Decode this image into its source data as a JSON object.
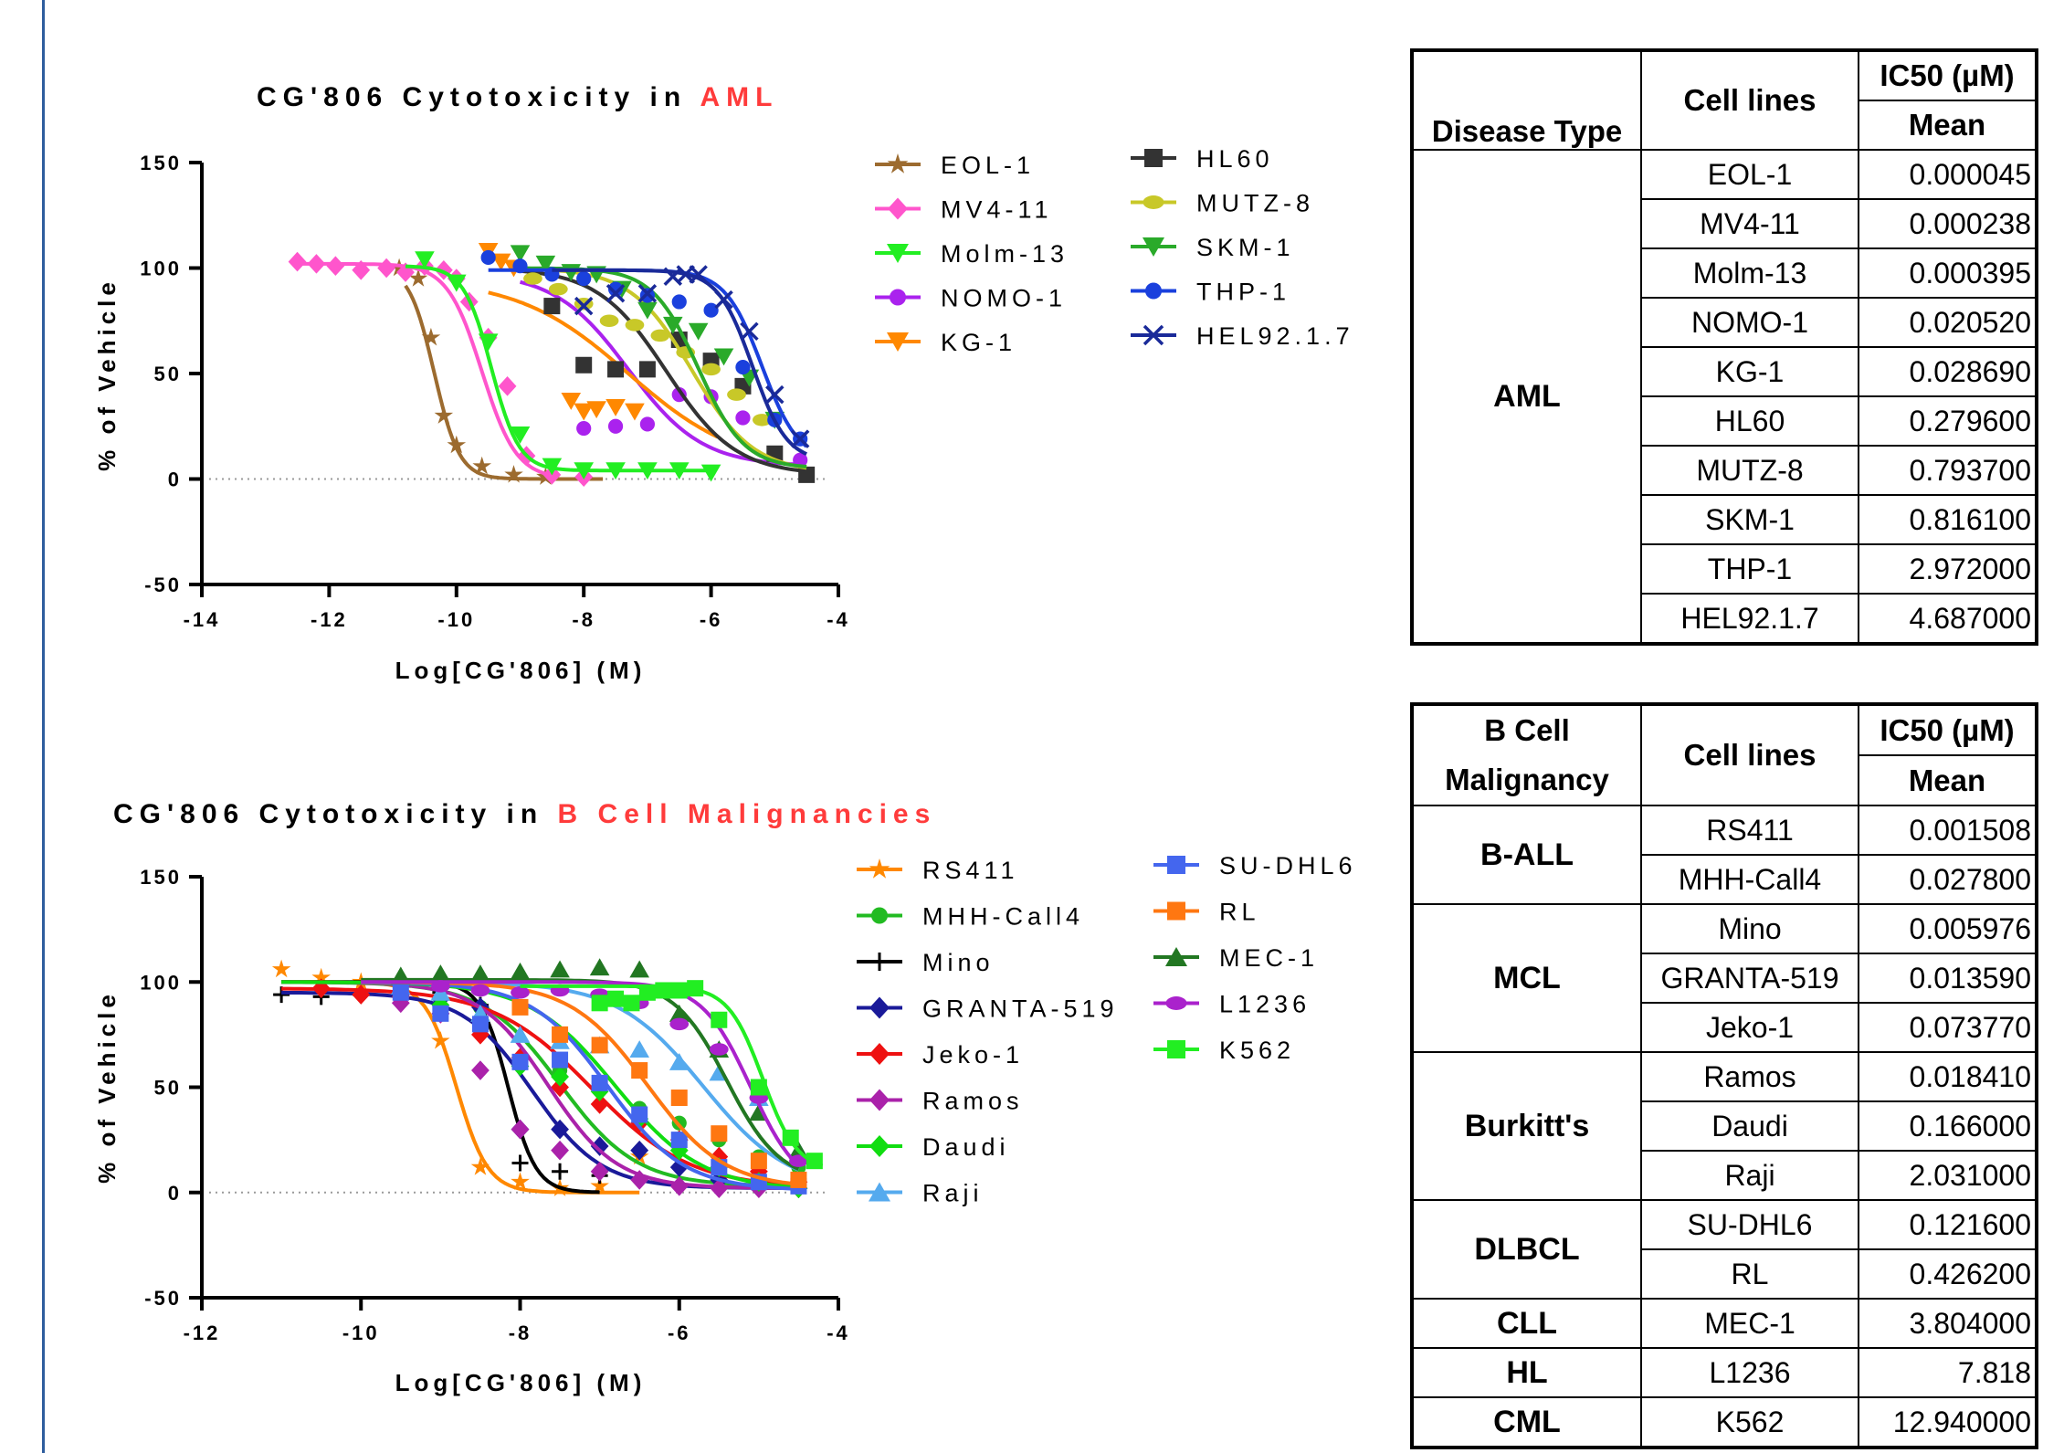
{
  "charts": {
    "aml": {
      "title_prefix": "CG'806 Cytotoxicity in ",
      "title_suffix": "AML",
      "xlabel": "Log[CG'806] (M)",
      "ylabel": "% of Vehicle",
      "xticks": [
        "-14",
        "-12",
        "-10",
        "-8",
        "-6",
        "-4"
      ],
      "yticks": [
        "150",
        "100",
        "50",
        "0",
        "-50"
      ]
    },
    "bcell": {
      "title_prefix": "CG'806 Cytotoxicity in ",
      "title_suffix": "B Cell Malignancies",
      "xlabel": "Log[CG'806] (M)",
      "ylabel": "% of Vehicle",
      "xticks": [
        "-12",
        "-10",
        "-8",
        "-6",
        "-4"
      ],
      "yticks": [
        "150",
        "100",
        "50",
        "0",
        "-50"
      ]
    }
  },
  "colors": {
    "title_accent": "#ff3b3b",
    "frame_rule": "#2e5d9e"
  },
  "chart_data": [
    {
      "type": "scatter",
      "title": "CG'806 Cytotoxicity in AML",
      "xlabel": "Log[CG'806] (M)",
      "ylabel": "% of Vehicle",
      "xlim": [
        -14,
        -4
      ],
      "ylim": [
        -50,
        150
      ],
      "legend_position": "top-right",
      "series": [
        {
          "name": "EOL-1",
          "color": "#9c6b2f",
          "marker": "star",
          "logIC50": -10.35,
          "hill": 2.2,
          "top": 101,
          "bottom": 0,
          "xmin": -10.8,
          "xmax": -7.7,
          "x": [
            -10.9,
            -10.6,
            -10.4,
            -10.2,
            -10,
            -9.6,
            -9.1,
            -8.6
          ],
          "y": [
            100,
            95,
            67,
            30,
            16,
            6,
            2,
            1
          ]
        },
        {
          "name": "MV4-11",
          "color": "#ff55cc",
          "marker": "diamond",
          "logIC50": -9.6,
          "hill": 1.6,
          "top": 102,
          "bottom": 0,
          "xmin": -12.5,
          "xmax": -8.5,
          "x": [
            -12.5,
            -12.2,
            -11.9,
            -11.5,
            -11.1,
            -10.8,
            -10.5,
            -10.2,
            -10,
            -9.8,
            -9.5,
            -9.2,
            -8.9,
            -8.5,
            -8
          ],
          "y": [
            103,
            102,
            101,
            99,
            100,
            98,
            101,
            99,
            95,
            84,
            67,
            44,
            11,
            2,
            1
          ]
        },
        {
          "name": "Molm-13",
          "color": "#22ee22",
          "marker": "tri-down",
          "logIC50": -9.45,
          "hill": 2.0,
          "top": 101,
          "bottom": 4,
          "xmin": -10.8,
          "xmax": -6,
          "x": [
            -10.5,
            -10,
            -9.5,
            -9,
            -8.5,
            -8,
            -7.5,
            -7,
            -6.5,
            -6
          ],
          "y": [
            104,
            93,
            65,
            21,
            6,
            4,
            4,
            4,
            4,
            3
          ]
        },
        {
          "name": "NOMO-1",
          "color": "#aa22ee",
          "marker": "circle",
          "logIC50": -7.3,
          "hill": 0.75,
          "top": 98,
          "bottom": 6,
          "xmin": -9,
          "xmax": -4.6,
          "x": [
            -8,
            -7.5,
            -7,
            -6.5,
            -6,
            -5.5,
            -5,
            -4.6
          ],
          "y": [
            24,
            25,
            26,
            40,
            39,
            29,
            10,
            9
          ]
        },
        {
          "name": "KG-1",
          "color": "#ff8800",
          "marker": "tri-down",
          "logIC50": -7.3,
          "hill": 0.5,
          "top": 95,
          "bottom": 5,
          "xmin": -9.5,
          "xmax": -5.9,
          "x": [
            -9.5,
            -9.3,
            -9.1,
            -8.2,
            -8,
            -7.8,
            -7.5,
            -7.2
          ],
          "y": [
            108,
            103,
            100,
            37,
            32,
            33,
            34,
            32
          ]
        },
        {
          "name": "HL60",
          "color": "#333333",
          "marker": "square",
          "logIC50": -6.7,
          "hill": 0.8,
          "top": 100,
          "bottom": 2,
          "xmin": -9,
          "xmax": -4.5,
          "x": [
            -8.5,
            -8,
            -7.5,
            -7,
            -6.5,
            -6,
            -5.5,
            -5,
            -4.5
          ],
          "y": [
            82,
            54,
            52,
            52,
            66,
            56,
            44,
            12,
            2
          ]
        },
        {
          "name": "MUTZ-8",
          "color": "#c8c828",
          "marker": "hexagon",
          "logIC50": -6.3,
          "hill": 0.9,
          "top": 100,
          "bottom": 3,
          "xmin": -9,
          "xmax": -4.5,
          "x": [
            -8.8,
            -8.4,
            -8,
            -7.6,
            -7.2,
            -6.8,
            -6.4,
            -6,
            -5.6,
            -5.2
          ],
          "y": [
            95,
            90,
            83,
            75,
            73,
            68,
            60,
            52,
            40,
            28
          ]
        },
        {
          "name": "SKM-1",
          "color": "#2aaa2a",
          "marker": "tri-down",
          "logIC50": -6.2,
          "hill": 1.2,
          "top": 100,
          "bottom": 5,
          "xmin": -9,
          "xmax": -4.5,
          "x": [
            -9,
            -8.6,
            -8.2,
            -7.8,
            -7.4,
            -7,
            -6.6,
            -6.2,
            -5.8,
            -5.4,
            -5
          ],
          "y": [
            107,
            102,
            98,
            97,
            90,
            80,
            73,
            70,
            58,
            48,
            28
          ]
        },
        {
          "name": "THP-1",
          "color": "#1a40dd",
          "marker": "circle",
          "logIC50": -5.2,
          "hill": 1.5,
          "top": 99,
          "bottom": 8,
          "xmin": -9.5,
          "xmax": -4.5,
          "x": [
            -9.5,
            -9,
            -8.5,
            -8,
            -7.5,
            -7,
            -6.5,
            -6,
            -5.5,
            -5,
            -4.6
          ],
          "y": [
            105,
            101,
            97,
            95,
            90,
            87,
            84,
            80,
            53,
            28,
            19
          ]
        },
        {
          "name": "HEL92.1.7",
          "color": "#1a2a99",
          "marker": "cross",
          "logIC50": -5.35,
          "hill": 1.6,
          "top": 99,
          "bottom": 8,
          "xmin": -8.5,
          "xmax": -4.5,
          "x": [
            -8,
            -7.5,
            -7,
            -6.6,
            -6.4,
            -6.2,
            -5.8,
            -5.4,
            -5,
            -4.6
          ],
          "y": [
            82,
            88,
            88,
            96,
            97,
            97,
            85,
            70,
            40,
            19
          ]
        }
      ]
    },
    {
      "type": "scatter",
      "title": "CG'806 Cytotoxicity in B Cell Malignancies",
      "xlabel": "Log[CG'806] (M)",
      "ylabel": "% of Vehicle",
      "xlim": [
        -12,
        -4
      ],
      "ylim": [
        -50,
        150
      ],
      "legend_position": "top-right",
      "series": [
        {
          "name": "RS411",
          "color": "#ff8800",
          "marker": "star",
          "logIC50": -8.8,
          "hill": 2.2,
          "top": 100,
          "bottom": 0,
          "xmin": -11,
          "xmax": -6.5,
          "x": [
            -11,
            -10.5,
            -10,
            -9.5,
            -9,
            -8.5,
            -8,
            -7.5,
            -7,
            -6.5
          ],
          "y": [
            106,
            102,
            100,
            99,
            72,
            12,
            5,
            2,
            3,
            17
          ]
        },
        {
          "name": "MHH-Call4",
          "color": "#22bb22",
          "marker": "circle",
          "logIC50": -7.5,
          "hill": 0.9,
          "top": 100,
          "bottom": 3,
          "xmin": -11,
          "xmax": -4.5,
          "x": [
            -8.5,
            -8,
            -7.5,
            -7,
            -6.5,
            -6,
            -5.5,
            -5,
            -4.5
          ],
          "y": [
            88,
            62,
            58,
            52,
            40,
            33,
            25,
            17,
            12
          ]
        },
        {
          "name": "Mino",
          "color": "#000000",
          "marker": "plus",
          "logIC50": -8.15,
          "hill": 2.5,
          "top": 100,
          "bottom": 0,
          "xmin": -11,
          "xmax": -7,
          "x": [
            -11,
            -10.5,
            -10,
            -9.5,
            -9,
            -8.5,
            -8,
            -7.5,
            -7
          ],
          "y": [
            94,
            93,
            94,
            94,
            95,
            89,
            14,
            10,
            8
          ]
        },
        {
          "name": "GRANTA-519",
          "color": "#1a1a99",
          "marker": "diamond",
          "logIC50": -7.85,
          "hill": 1.0,
          "top": 95,
          "bottom": 2,
          "xmin": -11,
          "xmax": -4.5,
          "x": [
            -9,
            -8.5,
            -8,
            -7.5,
            -7,
            -6.5,
            -6,
            -5.5,
            -5,
            -4.5
          ],
          "y": [
            92,
            88,
            30,
            30,
            22,
            20,
            12,
            6,
            3,
            2
          ]
        },
        {
          "name": "Jeko-1",
          "color": "#ee1111",
          "marker": "diamond",
          "logIC50": -7.1,
          "hill": 0.7,
          "top": 97,
          "bottom": 2,
          "xmin": -11,
          "xmax": -4.5,
          "x": [
            -10.5,
            -10,
            -9.5,
            -9,
            -8.5,
            -8,
            -7.5,
            -7,
            -6.5,
            -6,
            -5.5,
            -5,
            -4.5
          ],
          "y": [
            97,
            94,
            93,
            85,
            75,
            64,
            50,
            42,
            33,
            25,
            17,
            10,
            5
          ]
        },
        {
          "name": "Ramos",
          "color": "#aa22aa",
          "marker": "diamond",
          "logIC50": -7.65,
          "hill": 1.0,
          "top": 100,
          "bottom": 2,
          "xmin": -11,
          "xmax": -4.5,
          "x": [
            -9.5,
            -9,
            -8.5,
            -8,
            -7.5,
            -7,
            -6.5,
            -6,
            -5.5,
            -5,
            -4.5
          ],
          "y": [
            90,
            85,
            58,
            30,
            20,
            10,
            6,
            3,
            2,
            2,
            2
          ]
        },
        {
          "name": "Daudi",
          "color": "#11dd11",
          "marker": "diamond",
          "logIC50": -6.8,
          "hill": 0.8,
          "top": 100,
          "bottom": 1,
          "xmin": -11,
          "xmax": -4.5,
          "x": [
            -9,
            -8.5,
            -8,
            -7.5,
            -7,
            -6.5,
            -6,
            -5.5,
            -5,
            -4.5
          ],
          "y": [
            89,
            82,
            60,
            55,
            48,
            35,
            20,
            12,
            5,
            2
          ]
        },
        {
          "name": "Raji",
          "color": "#55aaee",
          "marker": "triangle",
          "logIC50": -5.7,
          "hill": 0.8,
          "top": 100,
          "bottom": 1,
          "xmin": -10,
          "xmax": -4.5,
          "x": [
            -9.5,
            -9,
            -8.5,
            -8,
            -7.5,
            -7,
            -6.5,
            -6,
            -5.5,
            -5,
            -4.5
          ],
          "y": [
            98,
            95,
            85,
            75,
            72,
            70,
            68,
            62,
            57,
            45,
            20
          ]
        },
        {
          "name": "SU-DHL6",
          "color": "#4466ee",
          "marker": "square",
          "logIC50": -6.9,
          "hill": 0.9,
          "top": 100,
          "bottom": 1,
          "xmin": -10,
          "xmax": -4.5,
          "x": [
            -9.5,
            -9,
            -8.5,
            -8,
            -7.5,
            -7,
            -6.5,
            -6,
            -5.5,
            -5,
            -4.5
          ],
          "y": [
            95,
            85,
            80,
            62,
            63,
            52,
            37,
            25,
            12,
            5,
            3
          ]
        },
        {
          "name": "RL",
          "color": "#ff7711",
          "marker": "square",
          "logIC50": -6.4,
          "hill": 0.9,
          "top": 100,
          "bottom": 2,
          "xmin": -10,
          "xmax": -4.5,
          "x": [
            -8,
            -7.5,
            -7,
            -6.5,
            -6,
            -5.5,
            -5,
            -4.5
          ],
          "y": [
            88,
            75,
            70,
            58,
            45,
            28,
            15,
            6
          ]
        },
        {
          "name": "MEC-1",
          "color": "#227722",
          "marker": "triangle",
          "logIC50": -5.4,
          "hill": 1.3,
          "top": 101,
          "bottom": 5,
          "xmin": -10,
          "xmax": -4.5,
          "x": [
            -9.5,
            -9,
            -8.5,
            -8,
            -7.5,
            -7,
            -6.5,
            -6,
            -5.5,
            -5,
            -4.5
          ],
          "y": [
            103,
            104,
            104,
            105,
            106,
            107,
            106,
            85,
            68,
            38,
            20
          ]
        },
        {
          "name": "L1236",
          "color": "#aa22cc",
          "marker": "hexagon",
          "logIC50": -5.1,
          "hill": 1.4,
          "top": 100,
          "bottom": 0,
          "xmin": -10,
          "xmax": -4.5,
          "x": [
            -9,
            -8.5,
            -8,
            -7.5,
            -7,
            -6.5,
            -6,
            -5.5,
            -5,
            -4.5
          ],
          "y": [
            98,
            96,
            95,
            96,
            94,
            90,
            80,
            68,
            45,
            15
          ]
        },
        {
          "name": "K562",
          "color": "#22ee22",
          "marker": "square",
          "logIC50": -4.95,
          "hill": 2.0,
          "top": 98,
          "bottom": 10,
          "xmin": -8,
          "xmax": -4.2,
          "x": [
            -7,
            -6.8,
            -6.6,
            -6.4,
            -6.2,
            -6,
            -5.8,
            -5.5,
            -5,
            -4.6,
            -4.3
          ],
          "y": [
            90,
            92,
            90,
            95,
            96,
            96,
            97,
            82,
            50,
            26,
            15
          ]
        }
      ]
    }
  ],
  "tables": {
    "aml": {
      "col1_header": "Disease Type",
      "col2_header": "Cell lines",
      "col3_header_top": "IC50 (µM)",
      "col3_header_bottom": "Mean",
      "group": "AML",
      "rows": [
        {
          "cell": "EOL-1",
          "mean": "0.000045"
        },
        {
          "cell": "MV4-11",
          "mean": "0.000238"
        },
        {
          "cell": "Molm-13",
          "mean": "0.000395"
        },
        {
          "cell": "NOMO-1",
          "mean": "0.020520"
        },
        {
          "cell": "KG-1",
          "mean": "0.028690"
        },
        {
          "cell": "HL60",
          "mean": "0.279600"
        },
        {
          "cell": "MUTZ-8",
          "mean": "0.793700"
        },
        {
          "cell": "SKM-1",
          "mean": "0.816100"
        },
        {
          "cell": "THP-1",
          "mean": "2.972000"
        },
        {
          "cell": "HEL92.1.7",
          "mean": "4.687000"
        }
      ]
    },
    "bcell": {
      "col1_header_line1": "B Cell",
      "col1_header_line2": "Malignancy",
      "col2_header": "Cell lines",
      "col3_header_top": "IC50 (µM)",
      "col3_header_bottom": "Mean",
      "groups": [
        {
          "name": "B-ALL",
          "rows": [
            {
              "cell": "RS411",
              "mean": "0.001508"
            },
            {
              "cell": "MHH-Call4",
              "mean": "0.027800"
            }
          ]
        },
        {
          "name": "MCL",
          "rows": [
            {
              "cell": "Mino",
              "mean": "0.005976"
            },
            {
              "cell": "GRANTA-519",
              "mean": "0.013590"
            },
            {
              "cell": "Jeko-1",
              "mean": "0.073770"
            }
          ]
        },
        {
          "name": "Burkitt's",
          "rows": [
            {
              "cell": "Ramos",
              "mean": "0.018410"
            },
            {
              "cell": "Daudi",
              "mean": "0.166000"
            },
            {
              "cell": "Raji",
              "mean": "2.031000"
            }
          ]
        },
        {
          "name": "DLBCL",
          "rows": [
            {
              "cell": "SU-DHL6",
              "mean": "0.121600"
            },
            {
              "cell": "RL",
              "mean": "0.426200"
            }
          ]
        },
        {
          "name": "CLL",
          "rows": [
            {
              "cell": "MEC-1",
              "mean": "3.804000"
            }
          ]
        },
        {
          "name": "HL",
          "rows": [
            {
              "cell": "L1236",
              "mean": "7.818"
            }
          ]
        },
        {
          "name": "CML",
          "rows": [
            {
              "cell": "K562",
              "mean": "12.940000"
            }
          ]
        }
      ]
    }
  }
}
